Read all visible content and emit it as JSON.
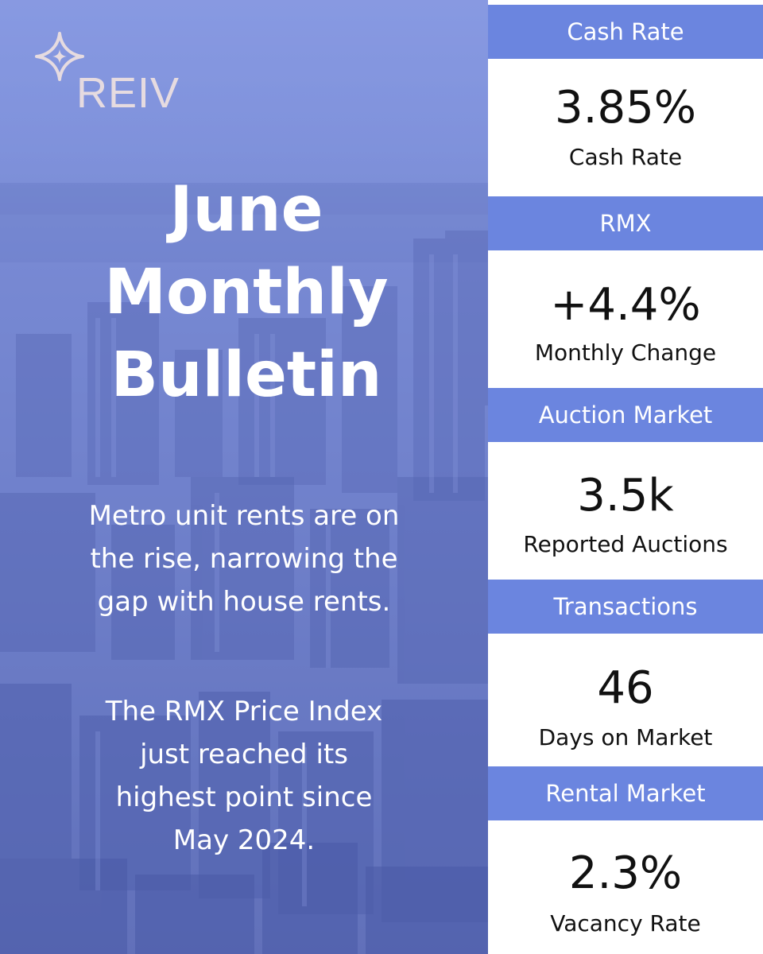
{
  "brand": {
    "name": "REIV",
    "logo_icon": "four-point-star-icon",
    "logo_color": "#e6dbe0"
  },
  "hero": {
    "title_lines": [
      "June",
      "Monthly",
      "Bulletin"
    ],
    "blurb_lines_1": [
      "Metro unit rents are on",
      "the rise, narrowing the",
      "gap with house rents."
    ],
    "blurb_lines_2": [
      "The RMX Price Index",
      "just reached its",
      "highest point since",
      "May 2024."
    ]
  },
  "stats": [
    {
      "header": "Cash Rate",
      "value": "3.85%",
      "label": "Cash Rate"
    },
    {
      "header": "RMX",
      "value": "+4.4%",
      "label": "Monthly Change"
    },
    {
      "header": "Auction Market",
      "value": "3.5k",
      "label": "Reported Auctions"
    },
    {
      "header": "Transactions",
      "value": "46",
      "label": "Days on Market"
    },
    {
      "header": "Rental Market",
      "value": "2.3%",
      "label": "Vacancy Rate"
    }
  ],
  "colors": {
    "accent": "#6b85df",
    "hero_tint": "#7b8cd0",
    "text_dark": "#111111",
    "text_light": "#ffffff"
  }
}
